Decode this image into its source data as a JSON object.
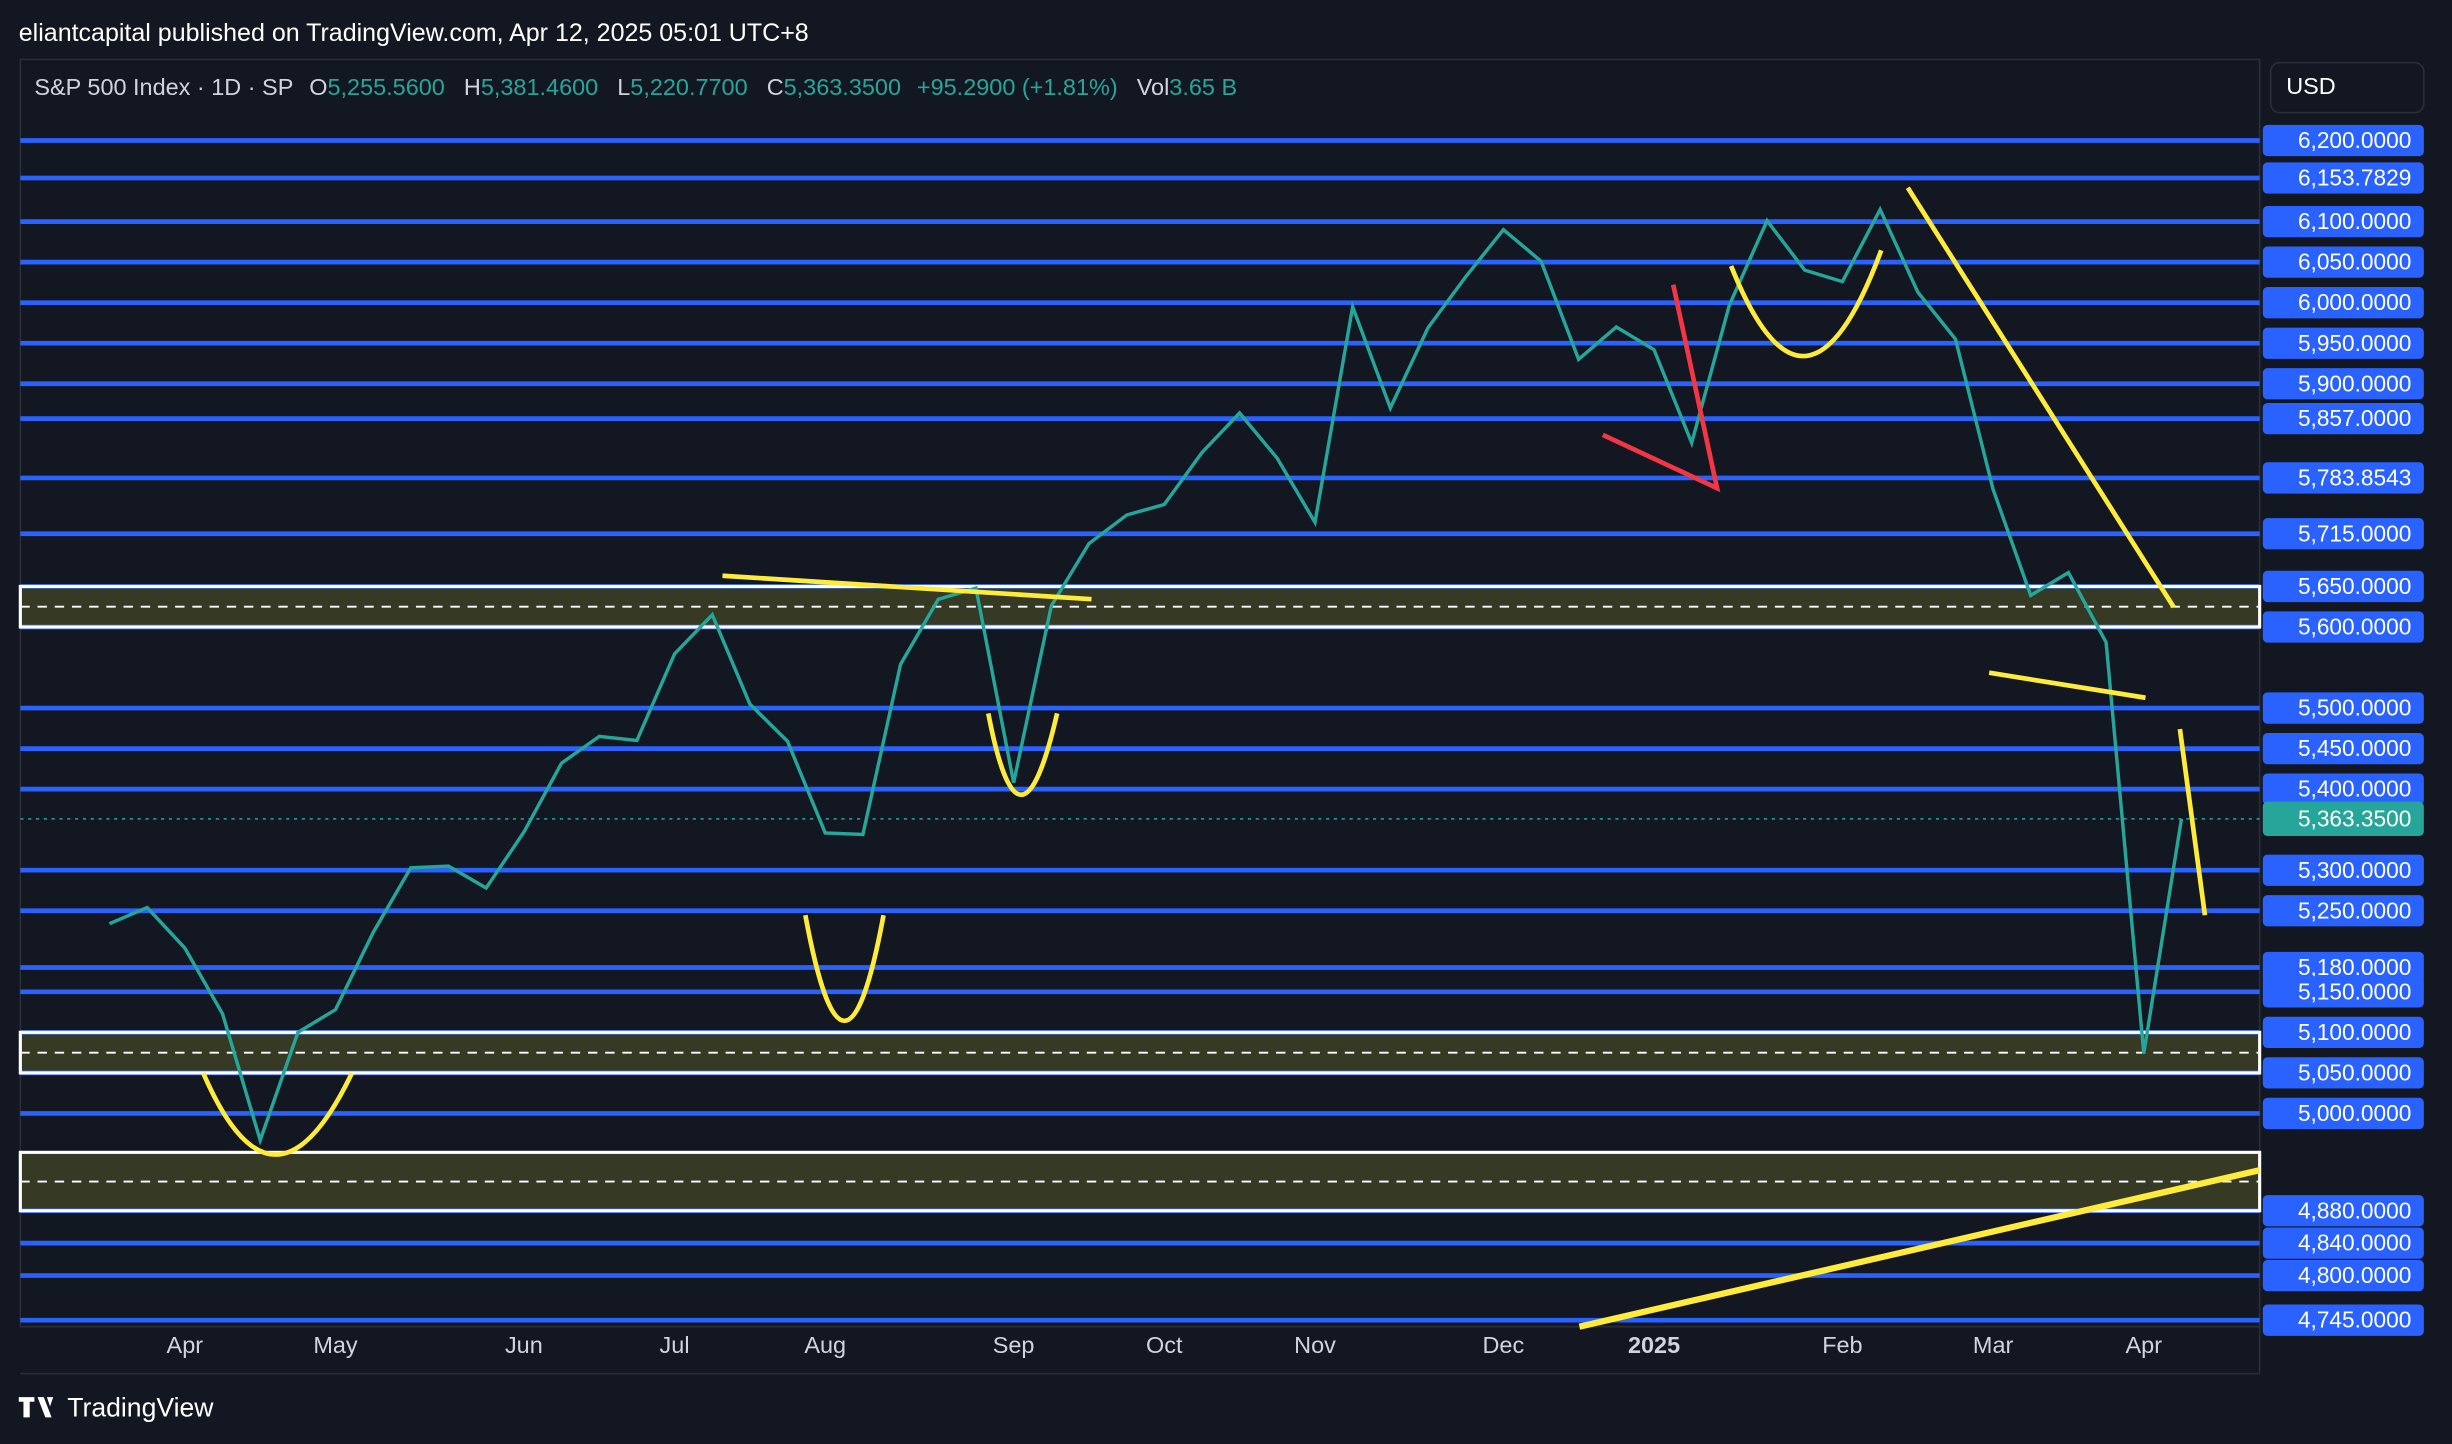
{
  "header": {
    "published": "eliantcapital published on TradingView.com, Apr 12, 2025 05:01 UTC+8"
  },
  "legend": {
    "symbol": "S&P 500 Index · 1D · SP",
    "ohlc": [
      [
        "O",
        "5,255.5600"
      ],
      [
        "H",
        "5,381.4600"
      ],
      [
        "L",
        "5,220.7700"
      ],
      [
        "C",
        "5,363.3500"
      ]
    ],
    "change": "+95.2900 (+1.81%)",
    "volume": [
      "Vol",
      "3.65 B"
    ]
  },
  "currency": "USD",
  "footer": "TradingView",
  "chart_data": {
    "type": "line",
    "categories": [
      null,
      null,
      "Apr",
      null,
      null,
      null,
      "May",
      null,
      null,
      null,
      null,
      "Jun",
      null,
      null,
      null,
      "Jul",
      null,
      null,
      null,
      "Aug",
      null,
      null,
      null,
      null,
      "Sep",
      null,
      null,
      null,
      "Oct",
      null,
      null,
      null,
      "Nov",
      null,
      null,
      null,
      null,
      "Dec",
      null,
      null,
      null,
      "2025",
      null,
      null,
      null,
      null,
      "Feb",
      null,
      null,
      null,
      "Mar",
      null,
      null,
      null,
      "Apr",
      null
    ],
    "series": [
      {
        "color": "#26a69a",
        "values": [
          5234,
          5254,
          5204,
          5123,
          4967,
          5100,
          5128,
          5223,
          5303,
          5305,
          5278,
          5347,
          5432,
          5465,
          5460,
          5567,
          5615,
          5505,
          5459,
          5346,
          5344,
          5554,
          5634,
          5648,
          5408,
          5626,
          5703,
          5738,
          5751,
          5815,
          5864,
          5808,
          5729,
          5995,
          5870,
          5969,
          6032,
          6090,
          6051,
          5930,
          5970,
          5942,
          5827,
          5997,
          6101,
          6040,
          6026,
          6115,
          6013,
          5955,
          5770,
          5639,
          5667,
          5581,
          5074,
          5363.35
        ]
      }
    ],
    "ylim": [
      4737,
      6300
    ],
    "yticks": [
      {
        "value": 6200,
        "label": "6,200.0000"
      },
      {
        "value": 6153.7829,
        "label": "6,153.7829"
      },
      {
        "value": 6100,
        "label": "6,100.0000"
      },
      {
        "value": 6050,
        "label": "6,050.0000"
      },
      {
        "value": 6000,
        "label": "6,000.0000"
      },
      {
        "value": 5950,
        "label": "5,950.0000"
      },
      {
        "value": 5900,
        "label": "5,900.0000"
      },
      {
        "value": 5857,
        "label": "5,857.0000"
      },
      {
        "value": 5783.8543,
        "label": "5,783.8543"
      },
      {
        "value": 5715,
        "label": "5,715.0000"
      },
      {
        "value": 5650,
        "label": "5,650.0000"
      },
      {
        "value": 5600,
        "label": "5,600.0000"
      },
      {
        "value": 5500,
        "label": "5,500.0000"
      },
      {
        "value": 5450,
        "label": "5,450.0000"
      },
      {
        "value": 5400,
        "label": "5,400.0000"
      },
      {
        "value": 5300,
        "label": "5,300.0000"
      },
      {
        "value": 5250,
        "label": "5,250.0000"
      },
      {
        "value": 5180,
        "label": "5,180.0000"
      },
      {
        "value": 5150,
        "label": "5,150.0000"
      },
      {
        "value": 5100,
        "label": "5,100.0000"
      },
      {
        "value": 5050,
        "label": "5,050.0000"
      },
      {
        "value": 5000,
        "label": "5,000.0000"
      },
      {
        "value": 4880,
        "label": "4,880.0000"
      },
      {
        "value": 4840,
        "label": "4,840.0000"
      },
      {
        "value": 4800,
        "label": "4,800.0000"
      },
      {
        "value": 4745,
        "label": "4,745.0000"
      }
    ],
    "last_price": {
      "value": 5363.35,
      "label": "5,363.3500",
      "color": "#26a69a"
    },
    "level_color": "#2962ff",
    "zones": [
      [
        5600,
        5650
      ],
      [
        5050,
        5100
      ],
      [
        4880,
        4952
      ]
    ]
  }
}
